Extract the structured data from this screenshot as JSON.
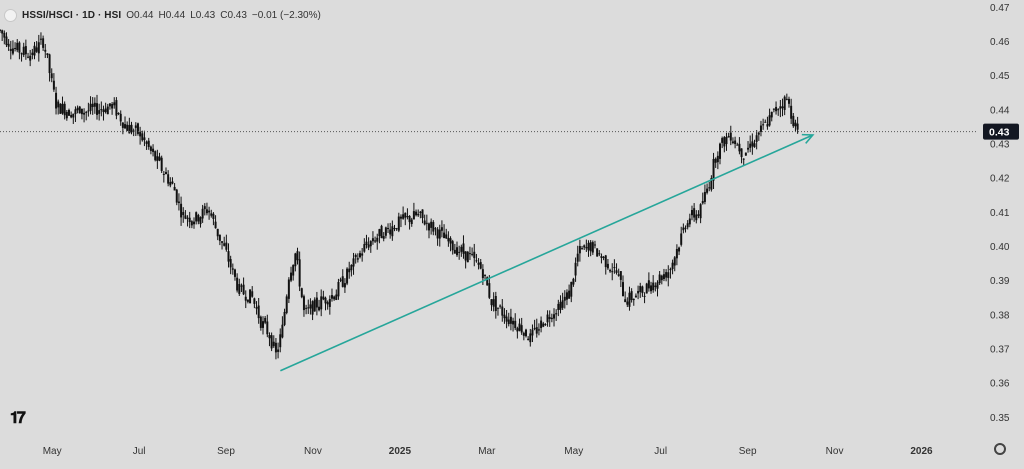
{
  "header": {
    "symbol": "HSSI/HSCI · 1D · HSI",
    "open": "O0.44",
    "high": "H0.44",
    "low": "L0.43",
    "close": "C0.43",
    "change": "−0.01 (−2.30%)"
  },
  "colors": {
    "background": "#dcdcdc",
    "candle": "#111111",
    "trendline": "#26a69a",
    "price_label_bg": "#131722",
    "price_label_fg": "#ffffff"
  },
  "chart_data": {
    "type": "candlestick",
    "title": "",
    "xlabel": "",
    "ylabel": "",
    "ylim": [
      0.345,
      0.472
    ],
    "grid": false,
    "y_ticks": [
      "0.47",
      "0.46",
      "0.45",
      "0.44",
      "0.43",
      "0.42",
      "0.41",
      "0.40",
      "0.39",
      "0.38",
      "0.37",
      "0.36",
      "0.35"
    ],
    "y_tick_values": [
      0.47,
      0.46,
      0.45,
      0.44,
      0.43,
      0.42,
      0.41,
      0.4,
      0.39,
      0.38,
      0.37,
      0.36,
      0.35
    ],
    "x_ticks": [
      "May",
      "Jul",
      "Sep",
      "Nov",
      "2025",
      "Mar",
      "May",
      "Jul",
      "Sep",
      "Nov",
      "2026"
    ],
    "x_tick_months": [
      1,
      3,
      5,
      7,
      9,
      11,
      13,
      15,
      17,
      19,
      21
    ],
    "x_range_months": [
      -0.2,
      22.3
    ],
    "current_price": "0.43",
    "current_price_value": 0.4335,
    "price_path": [
      {
        "m": -0.2,
        "v": 0.463
      },
      {
        "m": 0.1,
        "v": 0.458
      },
      {
        "m": 0.5,
        "v": 0.456
      },
      {
        "m": 0.8,
        "v": 0.46
      },
      {
        "m": 1.0,
        "v": 0.447
      },
      {
        "m": 1.1,
        "v": 0.441
      },
      {
        "m": 1.5,
        "v": 0.439
      },
      {
        "m": 2.0,
        "v": 0.44
      },
      {
        "m": 2.4,
        "v": 0.441
      },
      {
        "m": 2.7,
        "v": 0.435
      },
      {
        "m": 3.0,
        "v": 0.433
      },
      {
        "m": 3.5,
        "v": 0.423
      },
      {
        "m": 3.8,
        "v": 0.417
      },
      {
        "m": 4.0,
        "v": 0.409
      },
      {
        "m": 4.3,
        "v": 0.408
      },
      {
        "m": 4.6,
        "v": 0.411
      },
      {
        "m": 4.8,
        "v": 0.404
      },
      {
        "m": 5.0,
        "v": 0.398
      },
      {
        "m": 5.3,
        "v": 0.387
      },
      {
        "m": 5.6,
        "v": 0.385
      },
      {
        "m": 5.8,
        "v": 0.378
      },
      {
        "m": 6.0,
        "v": 0.374
      },
      {
        "m": 6.15,
        "v": 0.368
      },
      {
        "m": 6.3,
        "v": 0.376
      },
      {
        "m": 6.45,
        "v": 0.392
      },
      {
        "m": 6.6,
        "v": 0.398
      },
      {
        "m": 6.8,
        "v": 0.38
      },
      {
        "m": 7.2,
        "v": 0.384
      },
      {
        "m": 7.5,
        "v": 0.386
      },
      {
        "m": 7.8,
        "v": 0.392
      },
      {
        "m": 8.2,
        "v": 0.4
      },
      {
        "m": 8.5,
        "v": 0.403
      },
      {
        "m": 9.0,
        "v": 0.407
      },
      {
        "m": 9.4,
        "v": 0.409
      },
      {
        "m": 9.8,
        "v": 0.405
      },
      {
        "m": 10.2,
        "v": 0.4
      },
      {
        "m": 10.6,
        "v": 0.397
      },
      {
        "m": 10.9,
        "v": 0.393
      },
      {
        "m": 11.1,
        "v": 0.384
      },
      {
        "m": 11.4,
        "v": 0.38
      },
      {
        "m": 11.8,
        "v": 0.376
      },
      {
        "m": 12.0,
        "v": 0.373
      },
      {
        "m": 12.3,
        "v": 0.378
      },
      {
        "m": 12.6,
        "v": 0.382
      },
      {
        "m": 12.9,
        "v": 0.386
      },
      {
        "m": 13.1,
        "v": 0.398
      },
      {
        "m": 13.4,
        "v": 0.4
      },
      {
        "m": 13.7,
        "v": 0.396
      },
      {
        "m": 14.0,
        "v": 0.392
      },
      {
        "m": 14.2,
        "v": 0.384
      },
      {
        "m": 14.6,
        "v": 0.387
      },
      {
        "m": 14.9,
        "v": 0.39
      },
      {
        "m": 15.2,
        "v": 0.393
      },
      {
        "m": 15.4,
        "v": 0.4
      },
      {
        "m": 15.6,
        "v": 0.408
      },
      {
        "m": 15.9,
        "v": 0.41
      },
      {
        "m": 16.1,
        "v": 0.418
      },
      {
        "m": 16.3,
        "v": 0.428
      },
      {
        "m": 16.6,
        "v": 0.433
      },
      {
        "m": 16.9,
        "v": 0.427
      },
      {
        "m": 17.2,
        "v": 0.432
      },
      {
        "m": 17.5,
        "v": 0.437
      },
      {
        "m": 17.7,
        "v": 0.441
      },
      {
        "m": 17.9,
        "v": 0.443
      },
      {
        "m": 18.05,
        "v": 0.437
      },
      {
        "m": 18.15,
        "v": 0.433
      }
    ],
    "trendline": {
      "start": {
        "m": 6.25,
        "v": 0.3635
      },
      "end": {
        "m": 18.5,
        "v": 0.4325
      }
    }
  }
}
